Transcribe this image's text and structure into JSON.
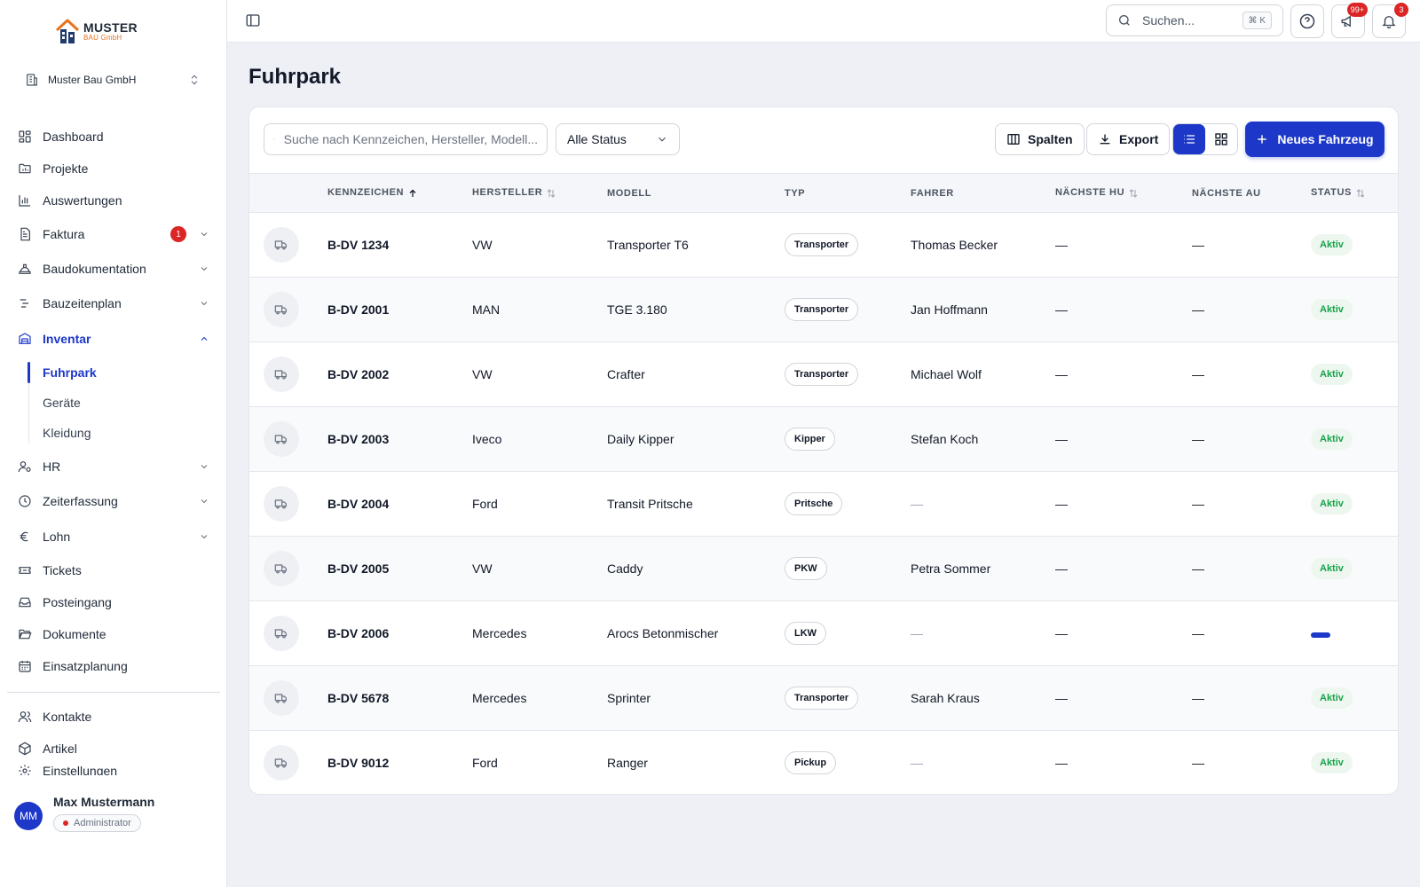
{
  "brand": {
    "name": "MUSTER",
    "sub": "BAU GmbH"
  },
  "company": {
    "name": "Muster Bau GmbH"
  },
  "sidebar": {
    "items": [
      {
        "label": "Dashboard",
        "icon": "dashboard-icon"
      },
      {
        "label": "Projekte",
        "icon": "folder-chart-icon"
      },
      {
        "label": "Auswertungen",
        "icon": "bar-chart-icon"
      },
      {
        "label": "Faktura",
        "icon": "invoice-icon",
        "badge": "1"
      },
      {
        "label": "Baudokumentation",
        "icon": "helmet-icon"
      },
      {
        "label": "Bauzeitenplan",
        "icon": "timeline-icon"
      },
      {
        "label": "Inventar",
        "icon": "inventory-icon"
      },
      {
        "label": "HR",
        "icon": "user-cog-icon"
      },
      {
        "label": "Zeiterfassung",
        "icon": "clock-icon"
      },
      {
        "label": "Lohn",
        "icon": "euro-icon"
      },
      {
        "label": "Tickets",
        "icon": "ticket-icon"
      },
      {
        "label": "Posteingang",
        "icon": "inbox-icon"
      },
      {
        "label": "Dokumente",
        "icon": "folder-open-icon"
      },
      {
        "label": "Einsatzplanung",
        "icon": "calendar-icon"
      },
      {
        "label": "Kontakte",
        "icon": "users-icon"
      },
      {
        "label": "Artikel",
        "icon": "package-icon"
      },
      {
        "label": "Einstellungen",
        "icon": "settings-icon"
      }
    ],
    "inventar_sub": [
      "Fuhrpark",
      "Geräte",
      "Kleidung"
    ]
  },
  "user": {
    "initials": "MM",
    "name": "Max Mustermann",
    "role": "Administrator"
  },
  "topbar": {
    "search_placeholder": "Suchen...",
    "shortcut": "⌘ K",
    "announcements_badge": "99+",
    "notifications_badge": "3"
  },
  "page": {
    "title": "Fuhrpark"
  },
  "toolbar": {
    "search_placeholder": "Suche nach Kennzeichen, Hersteller, Modell...",
    "status_filter": "Alle Status",
    "columns_label": "Spalten",
    "export_label": "Export",
    "new_label": "Neues Fahrzeug"
  },
  "table": {
    "headers": [
      "KENNZEICHEN",
      "HERSTELLER",
      "MODELL",
      "TYP",
      "FAHRER",
      "NÄCHSTE HU",
      "NÄCHSTE AU",
      "STATUS"
    ],
    "dash": "—",
    "rows": [
      {
        "plate": "B-DV 1234",
        "make": "VW",
        "model": "Transporter T6",
        "type": "Transporter",
        "driver": "Thomas Becker",
        "status": "Aktiv"
      },
      {
        "plate": "B-DV 2001",
        "make": "MAN",
        "model": "TGE 3.180",
        "type": "Transporter",
        "driver": "Jan Hoffmann",
        "status": "Aktiv"
      },
      {
        "plate": "B-DV 2002",
        "make": "VW",
        "model": "Crafter",
        "type": "Transporter",
        "driver": "Michael Wolf",
        "status": "Aktiv"
      },
      {
        "plate": "B-DV 2003",
        "make": "Iveco",
        "model": "Daily Kipper",
        "type": "Kipper",
        "driver": "Stefan Koch",
        "status": "Aktiv"
      },
      {
        "plate": "B-DV 2004",
        "make": "Ford",
        "model": "Transit Pritsche",
        "type": "Pritsche",
        "driver": "",
        "status": "Aktiv"
      },
      {
        "plate": "B-DV 2005",
        "make": "VW",
        "model": "Caddy",
        "type": "PKW",
        "driver": "Petra Sommer",
        "status": "Aktiv"
      },
      {
        "plate": "B-DV 2006",
        "make": "Mercedes",
        "model": "Arocs Betonmischer",
        "type": "LKW",
        "driver": "",
        "status": ""
      },
      {
        "plate": "B-DV 5678",
        "make": "Mercedes",
        "model": "Sprinter",
        "type": "Transporter",
        "driver": "Sarah Kraus",
        "status": "Aktiv"
      },
      {
        "plate": "B-DV 9012",
        "make": "Ford",
        "model": "Ranger",
        "type": "Pickup",
        "driver": "",
        "status": "Aktiv"
      }
    ]
  }
}
